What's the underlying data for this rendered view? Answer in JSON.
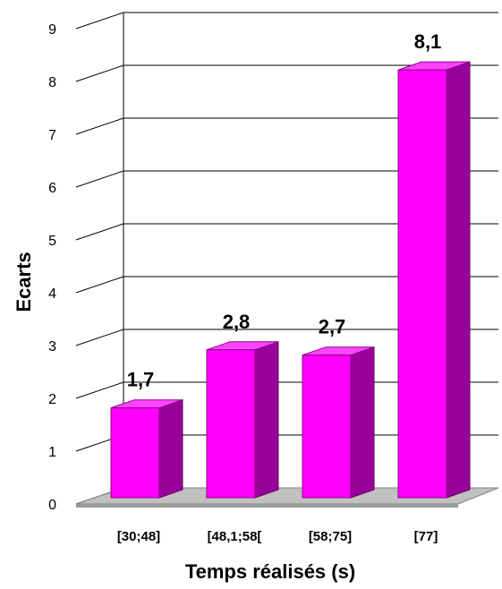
{
  "chart_data": {
    "type": "bar",
    "xlabel": "Temps réalisés (s)",
    "ylabel": "Ecarts",
    "categories": [
      "[30;48]",
      "[48,1;58[",
      "[58;75]",
      "[77]"
    ],
    "values": [
      1.7,
      2.8,
      2.7,
      8.1
    ],
    "value_labels": [
      "1,7",
      "2,8",
      "2,7",
      "8,1"
    ],
    "ylim": [
      0,
      9
    ],
    "yticks": [
      "0",
      "1",
      "2",
      "3",
      "4",
      "5",
      "6",
      "7",
      "8",
      "9"
    ],
    "grid": true,
    "style": "3d",
    "colors": {
      "bar_front": "#ff00ff",
      "bar_side": "#990099",
      "bar_top": "#ff44ff",
      "floor": "#c0c0c0",
      "grid": "#000000"
    }
  }
}
